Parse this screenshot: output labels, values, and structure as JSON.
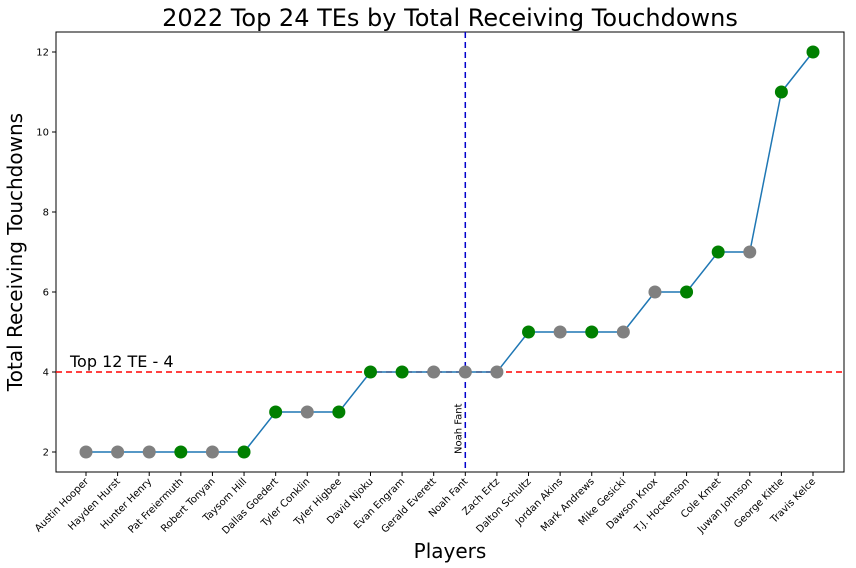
{
  "chart_data": {
    "type": "line",
    "title": "2022 Top 24 TEs by Total Receiving Touchdowns",
    "xlabel": "Players",
    "ylabel": "Total Receiving Touchdowns",
    "categories": [
      "Austin Hooper",
      "Hayden Hurst",
      "Hunter Henry",
      "Pat Freiermuth",
      "Robert Tonyan",
      "Taysom Hill",
      "Dallas Goedert",
      "Tyler Conklin",
      "Tyler Higbee",
      "David Njoku",
      "Evan Engram",
      "Gerald Everett",
      "Noah Fant",
      "Zach Ertz",
      "Dalton Schultz",
      "Jordan Akins",
      "Mark Andrews",
      "Mike Gesicki",
      "Dawson Knox",
      "T.J. Hockenson",
      "Cole Kmet",
      "Juwan Johnson",
      "George Kittle",
      "Travis Kelce"
    ],
    "values": [
      2,
      2,
      2,
      2,
      2,
      2,
      3,
      3,
      3,
      4,
      4,
      4,
      4,
      4,
      5,
      5,
      5,
      5,
      6,
      6,
      7,
      7,
      11,
      12
    ],
    "marker_colors": [
      "gray",
      "gray",
      "gray",
      "green",
      "gray",
      "green",
      "green",
      "gray",
      "green",
      "green",
      "green",
      "gray",
      "gray",
      "gray",
      "green",
      "gray",
      "green",
      "gray",
      "gray",
      "green",
      "green",
      "gray",
      "green",
      "green"
    ],
    "ylim": [
      1.5,
      12.5
    ],
    "yticks": [
      2,
      4,
      6,
      8,
      10,
      12
    ],
    "line_color": "#1f77b4",
    "hline": {
      "value": 4,
      "color": "#ff0000",
      "label": "Top 12 TE - 4"
    },
    "vline": {
      "category": "Noah Fant",
      "color": "#0000cc",
      "label": "Noah Fant"
    },
    "grid": false,
    "legend": "none"
  }
}
